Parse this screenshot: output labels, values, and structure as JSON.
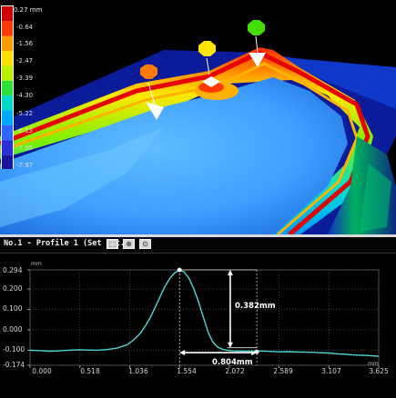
{
  "colorbar": {
    "unit_label": "0.27 mm",
    "labels": [
      "-0.64",
      "-1.56",
      "-2.47",
      "-3.39",
      "-4.30",
      "-5.22",
      "-6.13",
      "-7.05",
      "-7.97"
    ],
    "colors": [
      "#d00000",
      "#ff3a00",
      "#ff9a00",
      "#ffe000",
      "#b8f000",
      "#2ee03a",
      "#00d8c8",
      "#00a8ff",
      "#2f66ff",
      "#2a2fd8",
      "#1b1399"
    ]
  },
  "markers": [
    {
      "name": "orange-point",
      "color": "#ff7a00"
    },
    {
      "name": "yellow-point",
      "color": "#ffe600"
    },
    {
      "name": "green-point",
      "color": "#44dd00"
    }
  ],
  "profile": {
    "title": "No.1 - Profile 1 (Set 2pt.)",
    "toolbar": [
      {
        "name": "fit-button",
        "icon": "frame-icon",
        "glyph": "⬚"
      },
      {
        "name": "zoom-in-button",
        "icon": "magnifier-plus-icon",
        "glyph": "⊕"
      },
      {
        "name": "zoom-out-button",
        "icon": "magnifier-icon",
        "glyph": "⊙"
      }
    ]
  },
  "chart_data": {
    "type": "line",
    "xunit": "mm",
    "yunit": "mm",
    "x_ticks": [
      "0.000",
      "0.518",
      "1.036",
      "1.554",
      "2.072",
      "2.589",
      "3.107",
      "3.625"
    ],
    "y_ticks": [
      "0.294",
      "0.200",
      "0.100",
      "0.000",
      "-0.100",
      "-0.174"
    ],
    "xlim": [
      0.0,
      3.625
    ],
    "ylim": [
      -0.174,
      0.294
    ],
    "grid": true,
    "line_color": "#4fd6d0",
    "x": [
      0.0,
      0.1,
      0.2,
      0.3,
      0.4,
      0.5,
      0.6,
      0.7,
      0.8,
      0.9,
      1.0,
      1.05,
      1.1,
      1.15,
      1.2,
      1.25,
      1.3,
      1.35,
      1.4,
      1.45,
      1.5,
      1.55,
      1.6,
      1.65,
      1.7,
      1.75,
      1.8,
      1.85,
      1.9,
      1.95,
      2.0,
      2.05,
      2.1,
      2.2,
      2.3,
      2.4,
      2.5,
      2.6,
      2.7,
      2.8,
      2.9,
      3.0,
      3.1,
      3.2,
      3.3,
      3.4,
      3.5,
      3.625
    ],
    "y": [
      -0.1,
      -0.102,
      -0.105,
      -0.103,
      -0.1,
      -0.098,
      -0.099,
      -0.1,
      -0.097,
      -0.09,
      -0.075,
      -0.06,
      -0.04,
      -0.015,
      0.02,
      0.06,
      0.11,
      0.16,
      0.21,
      0.25,
      0.278,
      0.292,
      0.285,
      0.255,
      0.205,
      0.14,
      0.065,
      -0.01,
      -0.06,
      -0.085,
      -0.095,
      -0.1,
      -0.103,
      -0.104,
      -0.105,
      -0.104,
      -0.106,
      -0.108,
      -0.107,
      -0.109,
      -0.11,
      -0.112,
      -0.114,
      -0.118,
      -0.121,
      -0.124,
      -0.126,
      -0.13
    ],
    "annotations": [
      {
        "label": "0.382mm",
        "type": "height",
        "x": 1.554,
        "y_top": 0.294,
        "y_bottom": -0.088
      },
      {
        "label": "0.804mm",
        "type": "width",
        "x_start": 1.554,
        "x_end": 2.358,
        "y": -0.112
      }
    ]
  }
}
